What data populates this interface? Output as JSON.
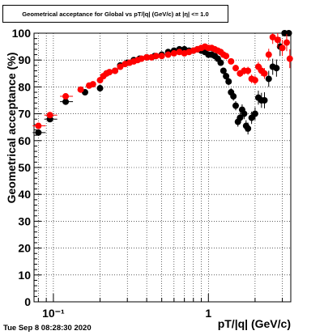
{
  "title": "Geometrical acceptance for Global vs pT/|q| (GeV/c) at |η| <= 1.0",
  "timestamp": "Tue Sep  8 08:28:30 2020",
  "chart_data": {
    "type": "scatter",
    "xlabel": "pT/|q| (GeV/c)",
    "ylabel": "Geometrical acceptance (%)",
    "xscale": "log",
    "xlim": [
      0.075,
      3.4
    ],
    "ylim": [
      0,
      100
    ],
    "yticks": [
      0,
      10,
      20,
      30,
      40,
      50,
      60,
      70,
      80,
      90,
      100
    ],
    "xtick_labels": [
      "10⁻¹",
      "1"
    ],
    "colors": {
      "series_black": "#000000",
      "series_red": "#ff0000"
    },
    "series": [
      {
        "color": "#000000",
        "x": [
          0.08,
          0.095,
          0.12,
          0.16,
          0.2,
          0.22,
          0.25,
          0.27,
          0.3,
          0.33,
          0.36,
          0.4,
          0.45,
          0.5,
          0.55,
          0.6,
          0.65,
          0.7,
          0.75,
          0.8,
          0.85,
          0.9,
          0.95,
          1.0,
          1.05,
          1.1,
          1.15,
          1.2,
          1.25,
          1.3,
          1.35,
          1.4,
          1.45,
          1.5,
          1.55,
          1.6,
          1.65,
          1.7,
          1.75,
          1.8,
          1.9,
          2.0,
          2.1,
          2.2,
          2.3,
          2.45,
          2.6,
          2.75,
          2.9,
          3.1,
          3.3
        ],
        "y": [
          63,
          68,
          74.5,
          78,
          79.5,
          85,
          86,
          88,
          89,
          90,
          90.5,
          91,
          91.5,
          92,
          93,
          93.5,
          94,
          94,
          93.5,
          93.5,
          94,
          93.5,
          93,
          92,
          92,
          91.5,
          90.5,
          89,
          86,
          84,
          82,
          78,
          76.5,
          73,
          67,
          68.5,
          71.5,
          70,
          65.5,
          64.5,
          68.5,
          70,
          76,
          75,
          75,
          83,
          87.5,
          87,
          95,
          100,
          100
        ],
        "yerr": [
          1,
          1,
          1.2,
          1,
          1,
          0.8,
          0.8,
          0.8,
          0.7,
          0.7,
          0.7,
          0.6,
          0.6,
          0.6,
          0.6,
          0.6,
          0.6,
          0.6,
          0.6,
          0.6,
          0.7,
          0.7,
          0.7,
          0.8,
          0.8,
          0.9,
          1.0,
          1.0,
          1.2,
          1.3,
          1.4,
          1.5,
          1.6,
          1.7,
          1.8,
          1.9,
          2.0,
          2.0,
          2.1,
          2.2,
          2.3,
          2.4,
          2.6,
          2.8,
          3.0,
          3.0,
          3.0,
          3.2,
          3.5,
          0,
          0
        ]
      },
      {
        "color": "#ff0000",
        "x": [
          0.08,
          0.095,
          0.12,
          0.15,
          0.17,
          0.18,
          0.2,
          0.21,
          0.22,
          0.23,
          0.25,
          0.27,
          0.29,
          0.31,
          0.33,
          0.35,
          0.37,
          0.4,
          0.43,
          0.46,
          0.5,
          0.55,
          0.6,
          0.65,
          0.7,
          0.75,
          0.8,
          0.85,
          0.9,
          0.95,
          1.0,
          1.05,
          1.1,
          1.15,
          1.2,
          1.25,
          1.3,
          1.4,
          1.5,
          1.6,
          1.7,
          1.8,
          1.9,
          2.0,
          2.1,
          2.2,
          2.3,
          2.45,
          2.6,
          2.8,
          3.0,
          3.2,
          3.35
        ],
        "y": [
          65.5,
          69.5,
          76.5,
          79,
          80.5,
          81,
          82.5,
          84,
          85,
          85.5,
          86,
          87.5,
          88.5,
          89,
          89.5,
          90,
          90.5,
          91,
          91,
          91.5,
          91.5,
          92,
          92.5,
          93,
          92.5,
          93,
          93.5,
          94,
          94.5,
          95,
          94.5,
          94.5,
          94,
          93.5,
          93,
          92,
          91.5,
          89.5,
          87,
          85,
          86,
          86,
          83,
          82.5,
          87.5,
          86,
          85,
          92,
          98.5,
          97.5,
          94.5,
          96.5,
          90.5
        ],
        "yerr": [
          1,
          1,
          1,
          0.8,
          0.8,
          0.8,
          0.8,
          0.7,
          0.7,
          0.7,
          0.7,
          0.7,
          0.6,
          0.6,
          0.6,
          0.6,
          0.6,
          0.5,
          0.5,
          0.5,
          0.5,
          0.5,
          0.5,
          0.5,
          0.5,
          0.5,
          0.5,
          0.5,
          0.5,
          0.5,
          0.6,
          0.6,
          0.7,
          0.7,
          0.8,
          0.9,
          1.0,
          1.1,
          1.2,
          1.3,
          1.4,
          1.5,
          1.6,
          1.7,
          1.8,
          1.9,
          2.0,
          2.2,
          2.5,
          2.8,
          3.0,
          3.2,
          3.5
        ]
      }
    ],
    "grid": true,
    "legend": "none"
  }
}
